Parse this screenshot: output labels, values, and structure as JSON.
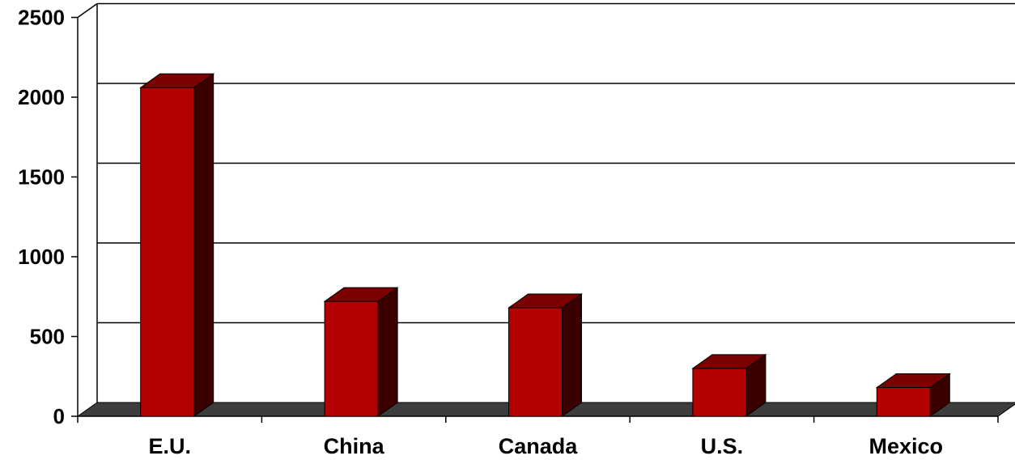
{
  "chart_data": {
    "type": "bar",
    "categories": [
      "E.U.",
      "China",
      "Canada",
      "U.S.",
      "Mexico"
    ],
    "values": [
      2060,
      720,
      680,
      300,
      180
    ],
    "title": "",
    "xlabel": "",
    "ylabel": "",
    "ylim": [
      0,
      2500
    ],
    "yticks": [
      "0",
      "500",
      "1000",
      "1500",
      "2000",
      "2500"
    ],
    "grid": true,
    "style": "3d-column",
    "colors": {
      "bar_front": "#b30000",
      "bar_top": "#7a0000",
      "bar_side": "#3a0000",
      "floor": "#3d3d3d",
      "gridline": "#000000"
    }
  }
}
